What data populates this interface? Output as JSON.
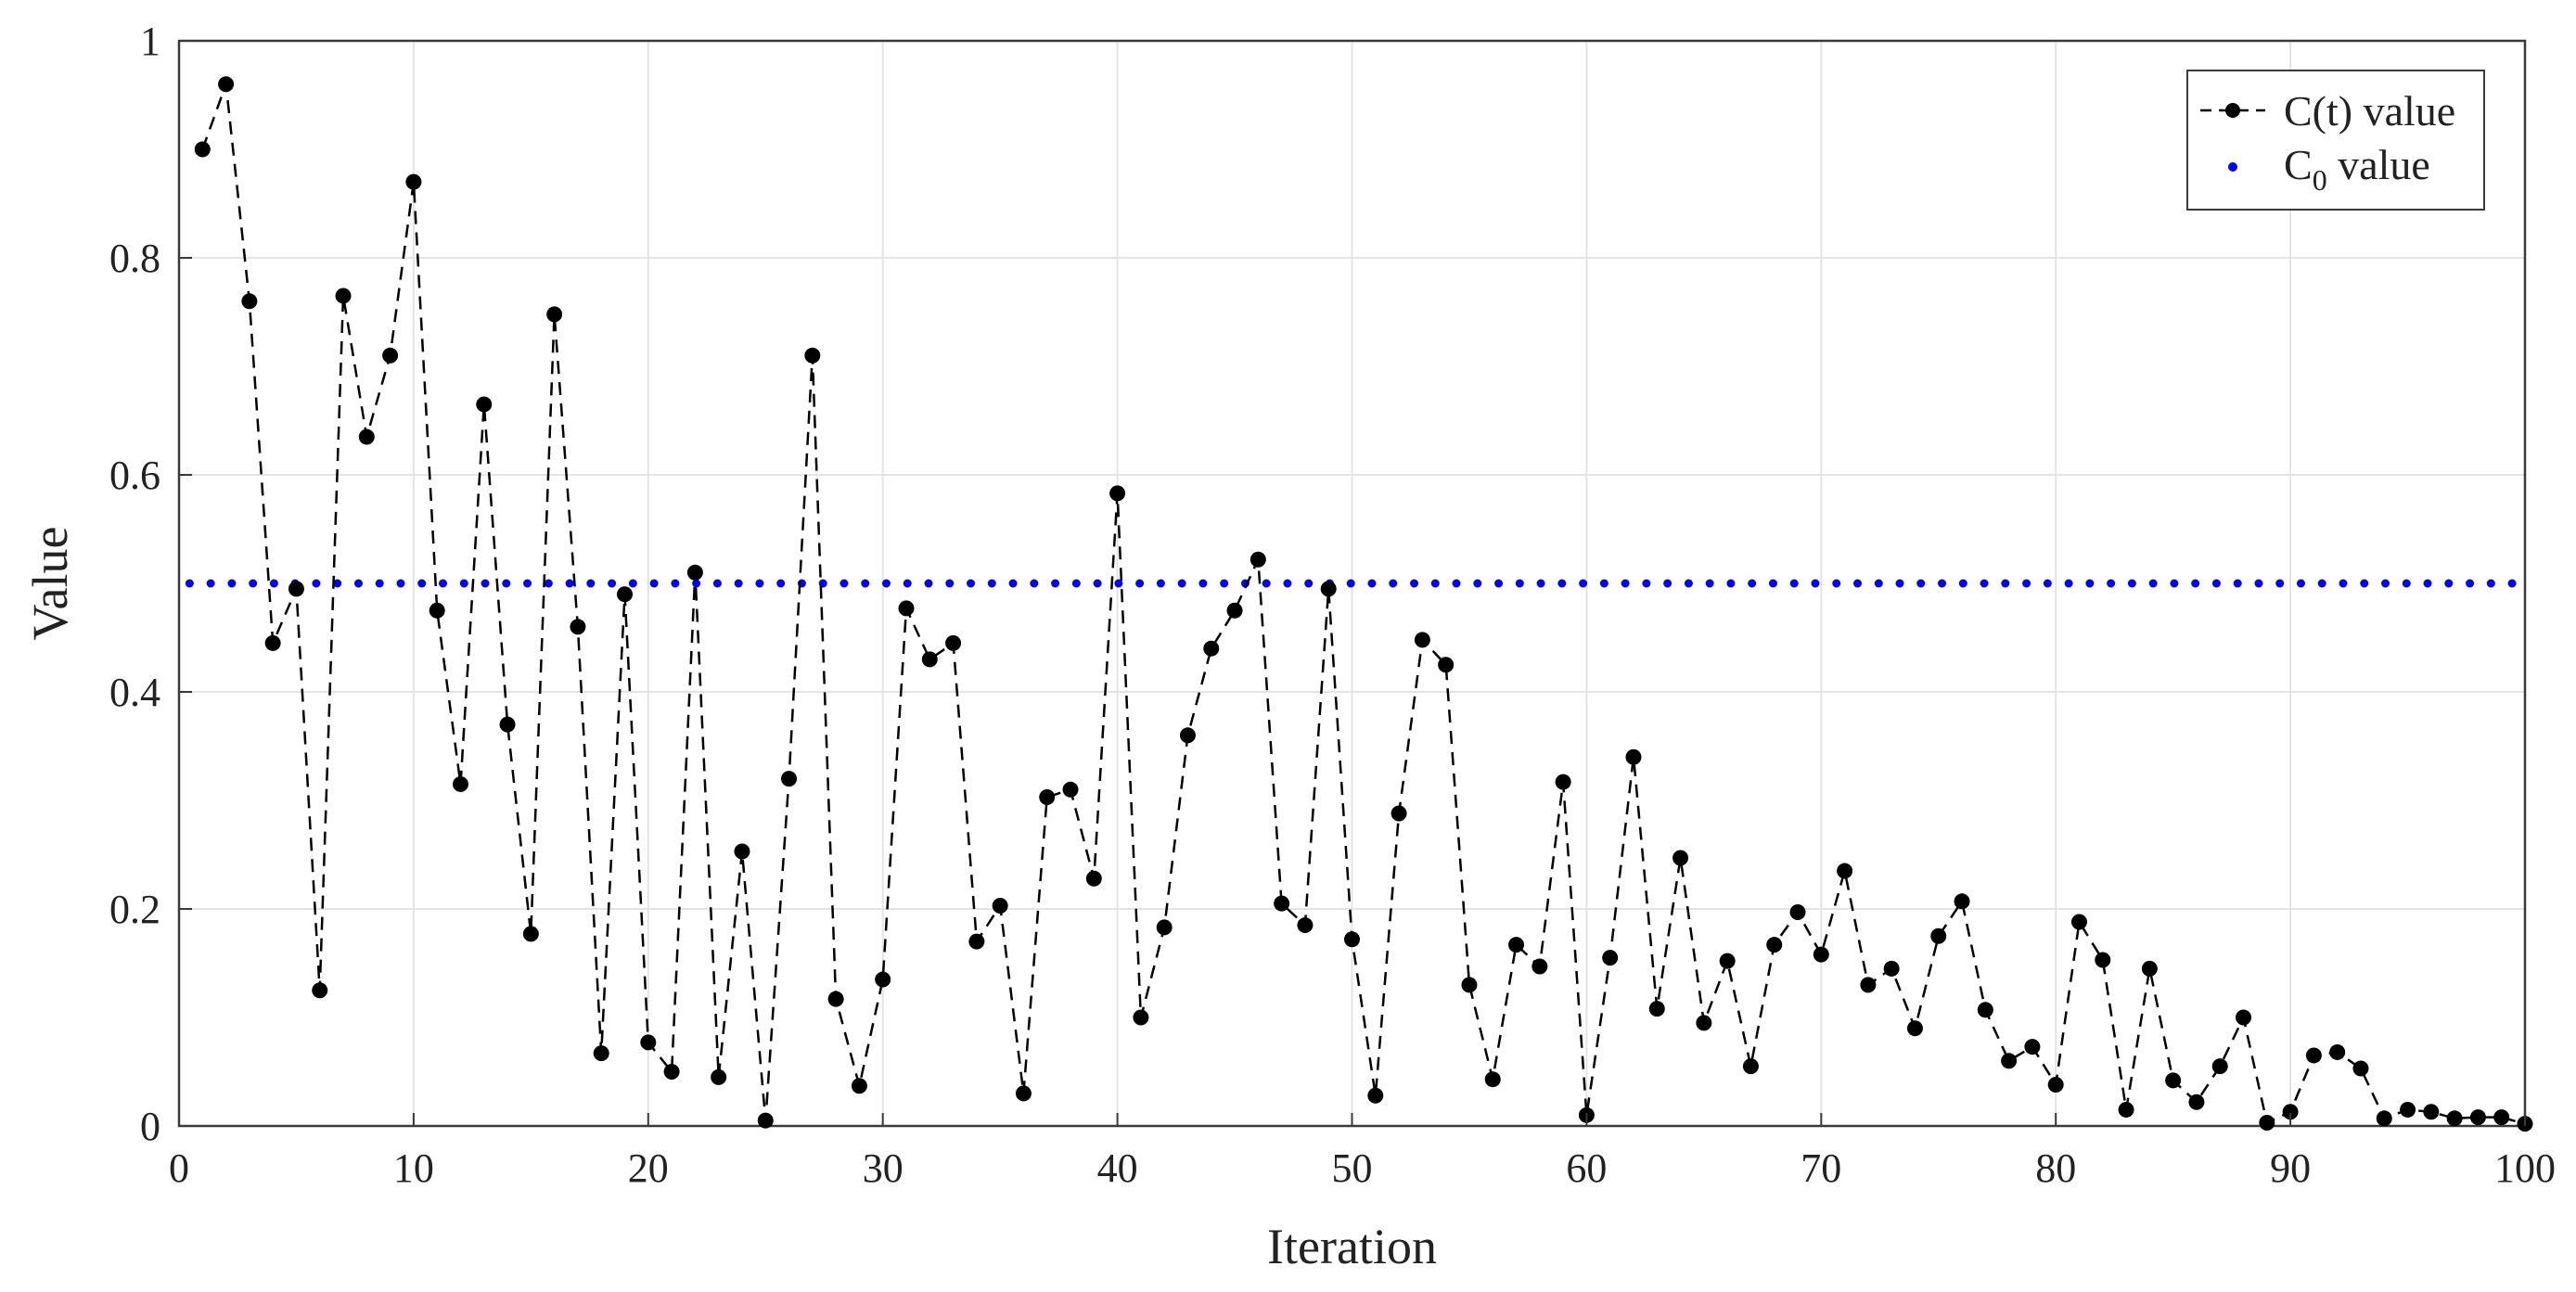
{
  "chart_data": {
    "type": "line",
    "xlabel": "Iteration",
    "ylabel": "Value",
    "xlim": [
      0,
      100
    ],
    "ylim": [
      0,
      1
    ],
    "xticks": [
      "0",
      "10",
      "20",
      "30",
      "40",
      "50",
      "60",
      "70",
      "80",
      "90",
      "100"
    ],
    "yticks": [
      "0",
      "0.2",
      "0.4",
      "0.6",
      "0.8",
      "1"
    ],
    "grid": true,
    "legend_position": "top-right",
    "series": [
      {
        "name": "C(t) value",
        "style": "dashed-line-with-dots",
        "color": "#000000",
        "x": [
          1,
          2,
          3,
          4,
          5,
          6,
          7,
          8,
          9,
          10,
          11,
          12,
          13,
          14,
          15,
          16,
          17,
          18,
          19,
          20,
          21,
          22,
          23,
          24,
          25,
          26,
          27,
          28,
          29,
          30,
          31,
          32,
          33,
          34,
          35,
          36,
          37,
          38,
          39,
          40,
          41,
          42,
          43,
          44,
          45,
          46,
          47,
          48,
          49,
          50,
          51,
          52,
          53,
          54,
          55,
          56,
          57,
          58,
          59,
          60,
          61,
          62,
          63,
          64,
          65,
          66,
          67,
          68,
          69,
          70,
          71,
          72,
          73,
          74,
          75,
          76,
          77,
          78,
          79,
          80,
          81,
          82,
          83,
          84,
          85,
          86,
          87,
          88,
          89,
          90,
          91,
          92,
          93,
          94,
          95,
          96,
          97,
          98,
          99,
          100
        ],
        "y": [
          0.9,
          0.96,
          0.76,
          0.445,
          0.495,
          0.125,
          0.765,
          0.635,
          0.71,
          0.87,
          0.475,
          0.315,
          0.665,
          0.37,
          0.177,
          0.748,
          0.46,
          0.067,
          0.49,
          0.077,
          0.05,
          0.51,
          0.045,
          0.253,
          0.005,
          0.32,
          0.71,
          0.117,
          0.037,
          0.135,
          0.477,
          0.43,
          0.445,
          0.17,
          0.203,
          0.03,
          0.303,
          0.31,
          0.228,
          0.583,
          0.1,
          0.183,
          0.36,
          0.44,
          0.475,
          0.522,
          0.205,
          0.185,
          0.495,
          0.172,
          0.028,
          0.288,
          0.448,
          0.425,
          0.13,
          0.043,
          0.167,
          0.147,
          0.317,
          0.01,
          0.155,
          0.34,
          0.108,
          0.247,
          0.095,
          0.152,
          0.055,
          0.167,
          0.197,
          0.158,
          0.235,
          0.13,
          0.145,
          0.09,
          0.175,
          0.207,
          0.107,
          0.06,
          0.073,
          0.038,
          0.188,
          0.153,
          0.015,
          0.145,
          0.042,
          0.022,
          0.055,
          0.1,
          0.003,
          0.013,
          0.065,
          0.068,
          0.053,
          0.007,
          0.015,
          0.013,
          0.007,
          0.008,
          0.008,
          0.002
        ]
      },
      {
        "name": "C0 value",
        "style": "dotted-line",
        "color": "#0000ff",
        "x": [
          0,
          100
        ],
        "y": [
          0.5,
          0.5
        ]
      }
    ]
  },
  "legend": {
    "ct_label": "C(t) value",
    "c0_label_base": "C",
    "c0_label_sub": "0",
    "c0_label_suffix": " value"
  }
}
